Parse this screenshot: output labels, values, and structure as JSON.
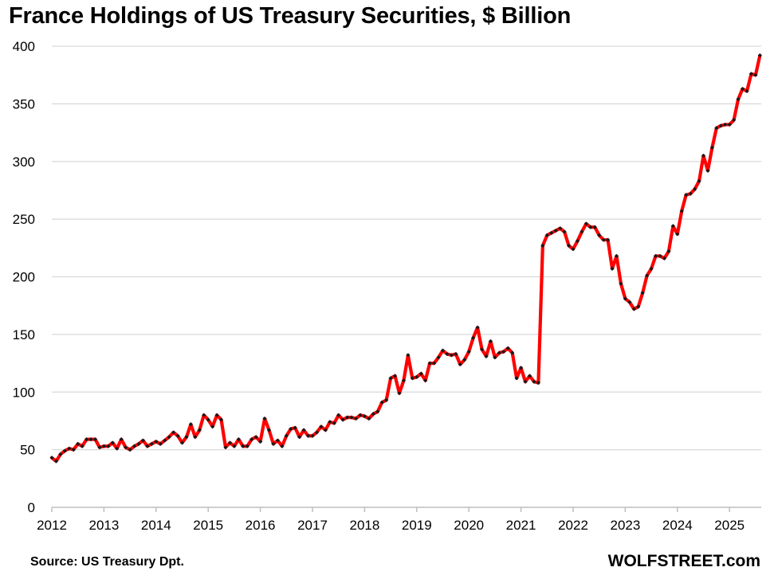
{
  "chart_data": {
    "type": "line",
    "title": "France Holdings of US Treasury Securities, $ Billion",
    "xlabel": "",
    "ylabel": "",
    "ylim": [
      0,
      400
    ],
    "y_ticks": [
      "0",
      "50",
      "100",
      "150",
      "200",
      "250",
      "300",
      "350",
      "400"
    ],
    "x_tick_labels": [
      "2012",
      "2013",
      "2014",
      "2015",
      "2016",
      "2017",
      "2018",
      "2019",
      "2020",
      "2021",
      "2022",
      "2023",
      "2024",
      "2025"
    ],
    "grid": "horizontal",
    "legend": "none",
    "colors": {
      "line": "#ff0000",
      "marker": "#1a1a1a",
      "grid": "#d9d9d9"
    },
    "series": [
      {
        "x_start": "2012-01",
        "frequency": "monthly",
        "values": [
          43,
          40,
          46,
          49,
          51,
          50,
          55,
          53,
          59,
          59,
          59,
          52,
          53,
          53,
          56,
          51,
          59,
          52,
          50,
          53,
          55,
          58,
          53,
          55,
          57,
          55,
          58,
          61,
          65,
          62,
          56,
          61,
          72,
          61,
          67,
          80,
          76,
          70,
          80,
          76,
          52,
          56,
          53,
          59,
          53,
          53,
          59,
          61,
          57,
          77,
          67,
          55,
          58,
          53,
          62,
          68,
          69,
          61,
          67,
          62,
          62,
          65,
          70,
          67,
          74,
          73,
          80,
          76,
          78,
          78,
          77,
          80,
          79,
          77,
          81,
          83,
          91,
          93,
          112,
          114,
          99,
          110,
          132,
          112,
          113,
          116,
          110,
          125,
          125,
          130,
          136,
          133,
          132,
          133,
          124,
          128,
          135,
          147,
          156,
          137,
          131,
          144,
          130,
          134,
          135,
          138,
          134,
          112,
          121,
          109,
          114,
          109,
          108,
          227,
          236,
          238,
          240,
          242,
          239,
          227,
          224,
          231,
          239,
          246,
          243,
          243,
          236,
          232,
          232,
          207,
          218,
          194,
          181,
          178,
          172,
          174,
          186,
          201,
          207,
          218,
          218,
          216,
          222,
          244,
          237,
          257,
          271,
          272,
          276,
          283,
          305,
          292,
          312,
          329,
          331,
          332,
          332,
          336,
          354,
          363,
          361,
          376,
          375,
          392
        ]
      }
    ]
  },
  "footer": {
    "source": "Source: US Treasury  Dpt.",
    "brand": "WOLFSTREET.com"
  }
}
